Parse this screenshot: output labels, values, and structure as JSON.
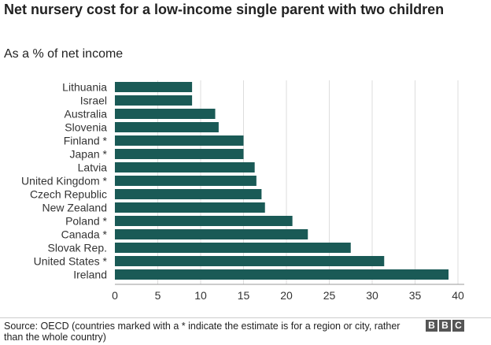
{
  "header": {
    "title": "Net nursery cost for a low-income single parent with two children",
    "subtitle": "As a % of net income"
  },
  "footer": {
    "source": "Source: OECD (countries marked with a * indicate the estimate is for a region or city, rather than the whole country)",
    "logo_letters": [
      "B",
      "B",
      "C"
    ]
  },
  "chart_data": {
    "type": "bar",
    "orientation": "horizontal",
    "title": "Net nursery cost for a low-income single parent with two children",
    "subtitle": "As a % of net income",
    "xlabel": "",
    "ylabel": "",
    "categories": [
      "Lithuania",
      "Israel",
      "Australia",
      "Slovenia",
      "Finland *",
      "Japan *",
      "Latvia",
      "United Kingdom *",
      "Czech Republic",
      "New Zealand",
      "Poland *",
      "Canada *",
      "Slovak Rep.",
      "United States *",
      "Ireland"
    ],
    "values": [
      9,
      9,
      11.7,
      12.1,
      15,
      15,
      16.3,
      16.5,
      17.1,
      17.5,
      20.7,
      22.5,
      27.5,
      31.4,
      38.9
    ],
    "xlim": [
      0,
      40
    ],
    "xticks": [
      0,
      5,
      10,
      15,
      20,
      25,
      30,
      35,
      40
    ],
    "grid": true,
    "bar_color": "#1a5a56"
  }
}
